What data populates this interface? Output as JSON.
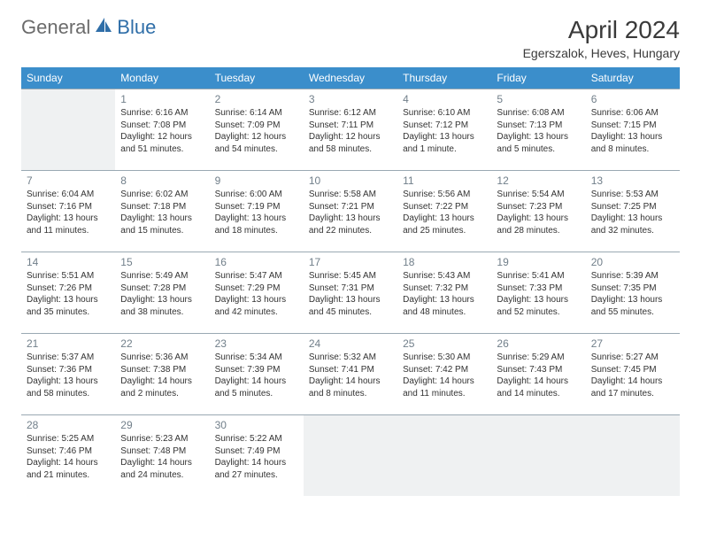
{
  "brand": {
    "left": "General",
    "right": "Blue"
  },
  "title": "April 2024",
  "location": "Egerszalok, Heves, Hungary",
  "colors": {
    "header_bg": "#3b8ecb",
    "header_fg": "#ffffff",
    "empty_bg": "#eff1f2",
    "cell_border": "#9aa9b3",
    "text": "#333333",
    "daynum": "#717f8a",
    "brand_gray": "#6b6b6b",
    "brand_blue": "#2f6ea8"
  },
  "weekdays": [
    "Sunday",
    "Monday",
    "Tuesday",
    "Wednesday",
    "Thursday",
    "Friday",
    "Saturday"
  ],
  "weeks": [
    [
      null,
      {
        "n": "1",
        "sr": "Sunrise: 6:16 AM",
        "ss": "Sunset: 7:08 PM",
        "d1": "Daylight: 12 hours",
        "d2": "and 51 minutes."
      },
      {
        "n": "2",
        "sr": "Sunrise: 6:14 AM",
        "ss": "Sunset: 7:09 PM",
        "d1": "Daylight: 12 hours",
        "d2": "and 54 minutes."
      },
      {
        "n": "3",
        "sr": "Sunrise: 6:12 AM",
        "ss": "Sunset: 7:11 PM",
        "d1": "Daylight: 12 hours",
        "d2": "and 58 minutes."
      },
      {
        "n": "4",
        "sr": "Sunrise: 6:10 AM",
        "ss": "Sunset: 7:12 PM",
        "d1": "Daylight: 13 hours",
        "d2": "and 1 minute."
      },
      {
        "n": "5",
        "sr": "Sunrise: 6:08 AM",
        "ss": "Sunset: 7:13 PM",
        "d1": "Daylight: 13 hours",
        "d2": "and 5 minutes."
      },
      {
        "n": "6",
        "sr": "Sunrise: 6:06 AM",
        "ss": "Sunset: 7:15 PM",
        "d1": "Daylight: 13 hours",
        "d2": "and 8 minutes."
      }
    ],
    [
      {
        "n": "7",
        "sr": "Sunrise: 6:04 AM",
        "ss": "Sunset: 7:16 PM",
        "d1": "Daylight: 13 hours",
        "d2": "and 11 minutes."
      },
      {
        "n": "8",
        "sr": "Sunrise: 6:02 AM",
        "ss": "Sunset: 7:18 PM",
        "d1": "Daylight: 13 hours",
        "d2": "and 15 minutes."
      },
      {
        "n": "9",
        "sr": "Sunrise: 6:00 AM",
        "ss": "Sunset: 7:19 PM",
        "d1": "Daylight: 13 hours",
        "d2": "and 18 minutes."
      },
      {
        "n": "10",
        "sr": "Sunrise: 5:58 AM",
        "ss": "Sunset: 7:21 PM",
        "d1": "Daylight: 13 hours",
        "d2": "and 22 minutes."
      },
      {
        "n": "11",
        "sr": "Sunrise: 5:56 AM",
        "ss": "Sunset: 7:22 PM",
        "d1": "Daylight: 13 hours",
        "d2": "and 25 minutes."
      },
      {
        "n": "12",
        "sr": "Sunrise: 5:54 AM",
        "ss": "Sunset: 7:23 PM",
        "d1": "Daylight: 13 hours",
        "d2": "and 28 minutes."
      },
      {
        "n": "13",
        "sr": "Sunrise: 5:53 AM",
        "ss": "Sunset: 7:25 PM",
        "d1": "Daylight: 13 hours",
        "d2": "and 32 minutes."
      }
    ],
    [
      {
        "n": "14",
        "sr": "Sunrise: 5:51 AM",
        "ss": "Sunset: 7:26 PM",
        "d1": "Daylight: 13 hours",
        "d2": "and 35 minutes."
      },
      {
        "n": "15",
        "sr": "Sunrise: 5:49 AM",
        "ss": "Sunset: 7:28 PM",
        "d1": "Daylight: 13 hours",
        "d2": "and 38 minutes."
      },
      {
        "n": "16",
        "sr": "Sunrise: 5:47 AM",
        "ss": "Sunset: 7:29 PM",
        "d1": "Daylight: 13 hours",
        "d2": "and 42 minutes."
      },
      {
        "n": "17",
        "sr": "Sunrise: 5:45 AM",
        "ss": "Sunset: 7:31 PM",
        "d1": "Daylight: 13 hours",
        "d2": "and 45 minutes."
      },
      {
        "n": "18",
        "sr": "Sunrise: 5:43 AM",
        "ss": "Sunset: 7:32 PM",
        "d1": "Daylight: 13 hours",
        "d2": "and 48 minutes."
      },
      {
        "n": "19",
        "sr": "Sunrise: 5:41 AM",
        "ss": "Sunset: 7:33 PM",
        "d1": "Daylight: 13 hours",
        "d2": "and 52 minutes."
      },
      {
        "n": "20",
        "sr": "Sunrise: 5:39 AM",
        "ss": "Sunset: 7:35 PM",
        "d1": "Daylight: 13 hours",
        "d2": "and 55 minutes."
      }
    ],
    [
      {
        "n": "21",
        "sr": "Sunrise: 5:37 AM",
        "ss": "Sunset: 7:36 PM",
        "d1": "Daylight: 13 hours",
        "d2": "and 58 minutes."
      },
      {
        "n": "22",
        "sr": "Sunrise: 5:36 AM",
        "ss": "Sunset: 7:38 PM",
        "d1": "Daylight: 14 hours",
        "d2": "and 2 minutes."
      },
      {
        "n": "23",
        "sr": "Sunrise: 5:34 AM",
        "ss": "Sunset: 7:39 PM",
        "d1": "Daylight: 14 hours",
        "d2": "and 5 minutes."
      },
      {
        "n": "24",
        "sr": "Sunrise: 5:32 AM",
        "ss": "Sunset: 7:41 PM",
        "d1": "Daylight: 14 hours",
        "d2": "and 8 minutes."
      },
      {
        "n": "25",
        "sr": "Sunrise: 5:30 AM",
        "ss": "Sunset: 7:42 PM",
        "d1": "Daylight: 14 hours",
        "d2": "and 11 minutes."
      },
      {
        "n": "26",
        "sr": "Sunrise: 5:29 AM",
        "ss": "Sunset: 7:43 PM",
        "d1": "Daylight: 14 hours",
        "d2": "and 14 minutes."
      },
      {
        "n": "27",
        "sr": "Sunrise: 5:27 AM",
        "ss": "Sunset: 7:45 PM",
        "d1": "Daylight: 14 hours",
        "d2": "and 17 minutes."
      }
    ],
    [
      {
        "n": "28",
        "sr": "Sunrise: 5:25 AM",
        "ss": "Sunset: 7:46 PM",
        "d1": "Daylight: 14 hours",
        "d2": "and 21 minutes."
      },
      {
        "n": "29",
        "sr": "Sunrise: 5:23 AM",
        "ss": "Sunset: 7:48 PM",
        "d1": "Daylight: 14 hours",
        "d2": "and 24 minutes."
      },
      {
        "n": "30",
        "sr": "Sunrise: 5:22 AM",
        "ss": "Sunset: 7:49 PM",
        "d1": "Daylight: 14 hours",
        "d2": "and 27 minutes."
      },
      null,
      null,
      null,
      null
    ]
  ]
}
